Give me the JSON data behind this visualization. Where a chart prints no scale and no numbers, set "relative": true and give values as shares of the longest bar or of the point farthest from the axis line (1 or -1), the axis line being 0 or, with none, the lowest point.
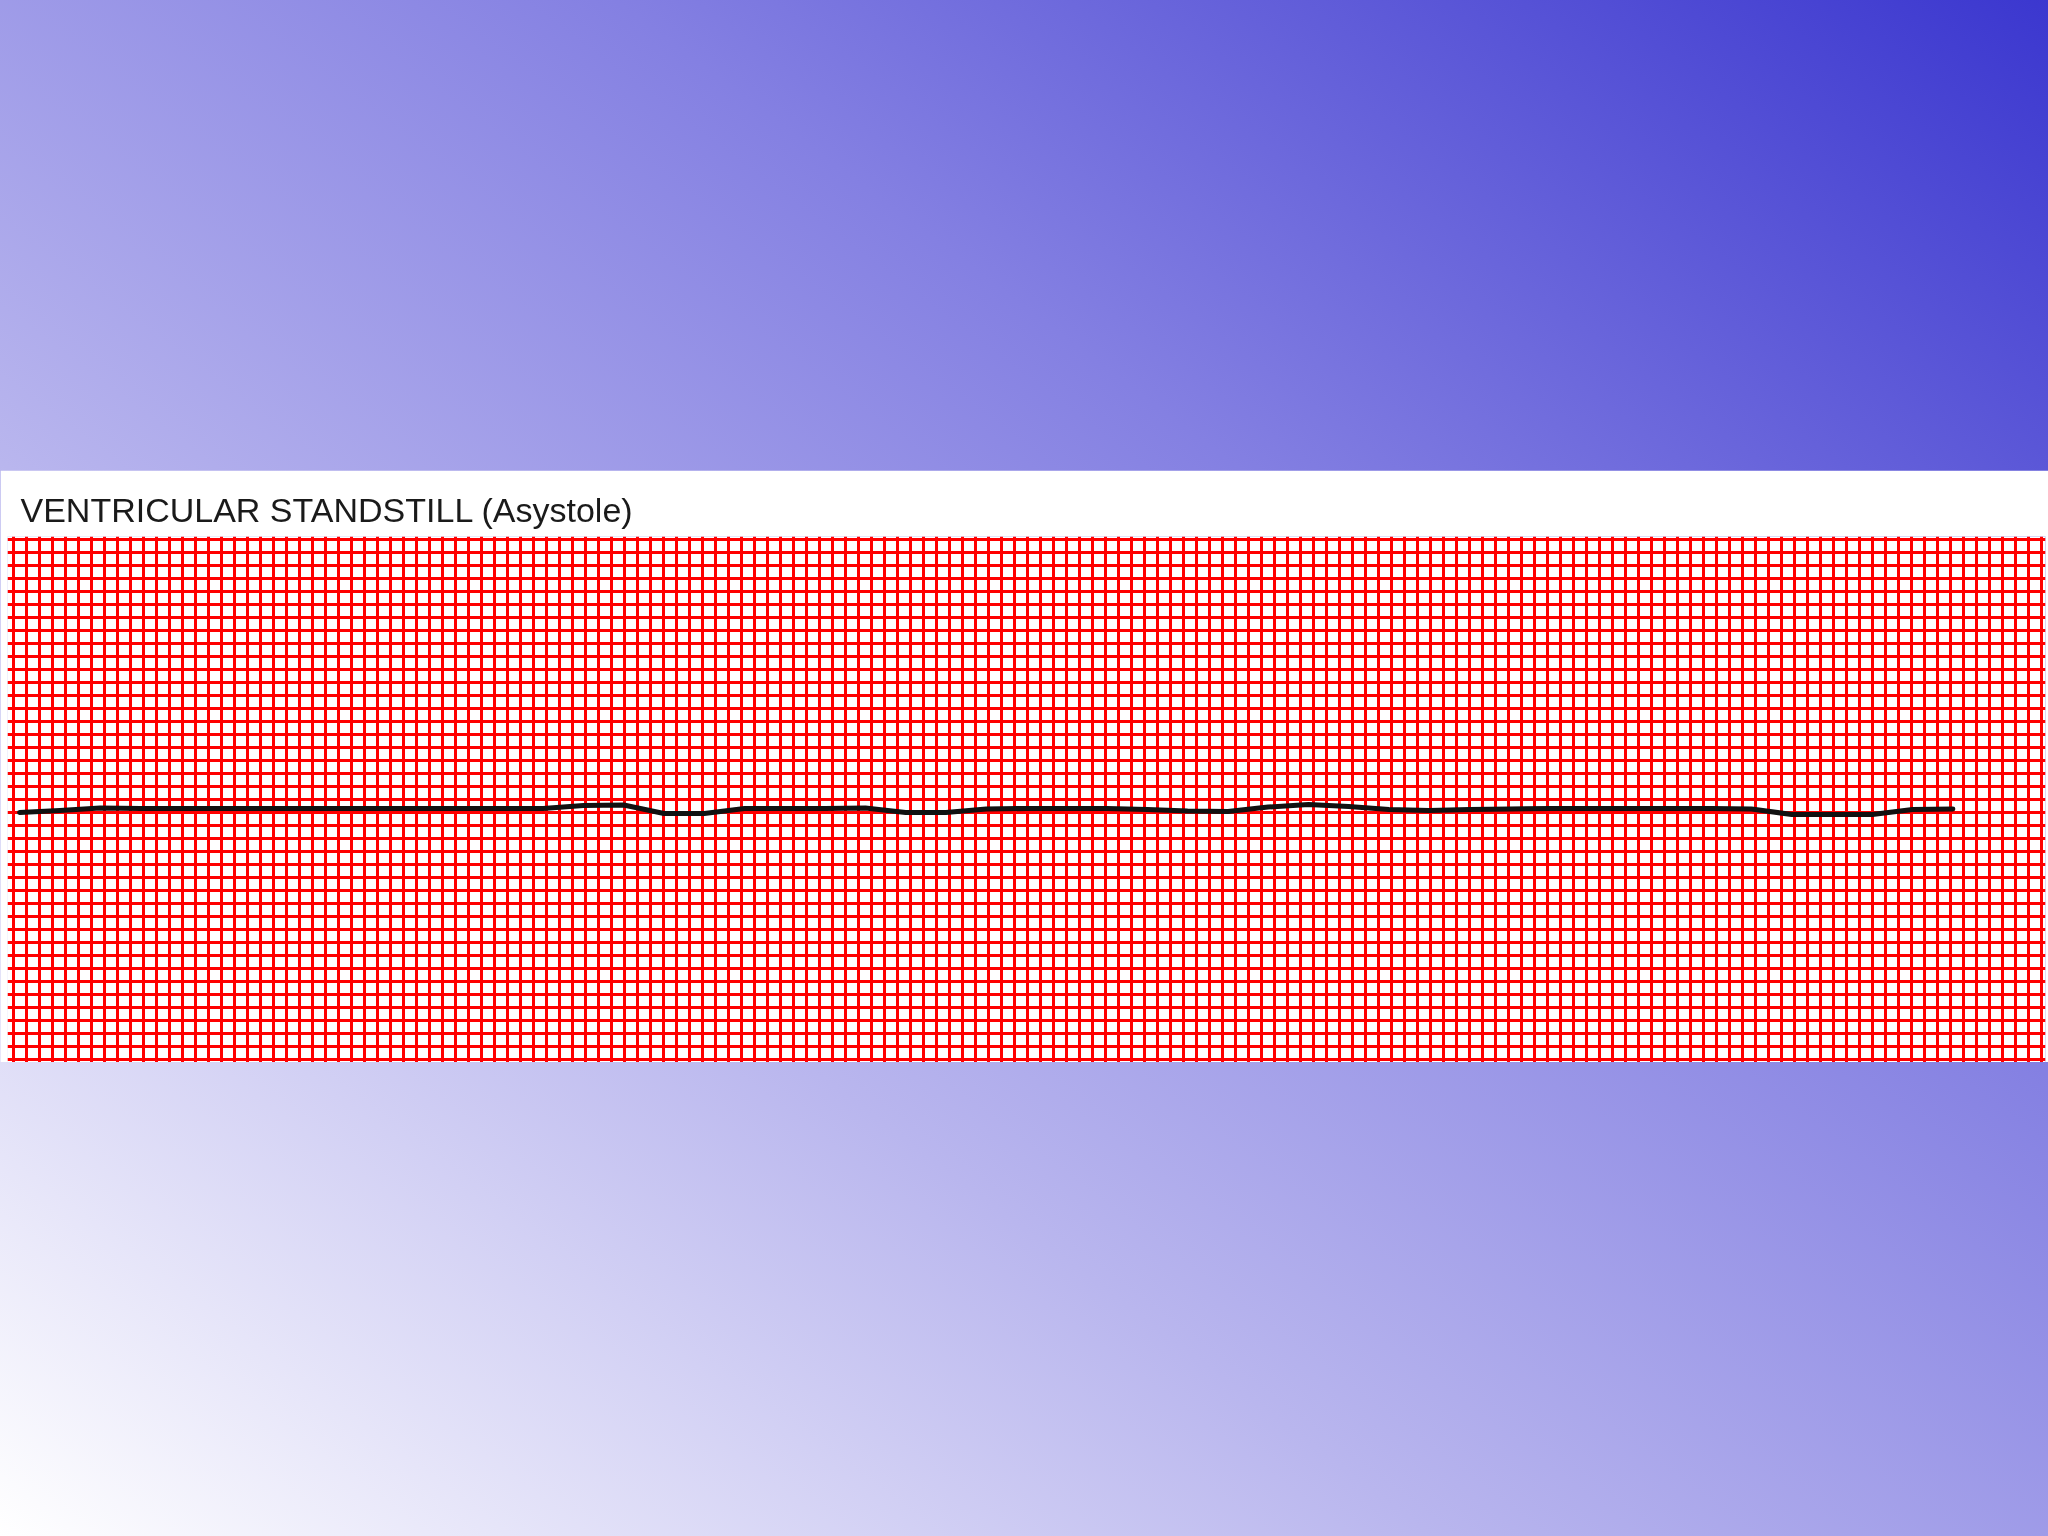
{
  "chart_data": {
    "type": "line",
    "title": "VENTRICULAR STANDSTILL  (Asystole)",
    "categories": [
      null,
      null,
      null,
      null,
      null,
      null,
      null,
      null,
      null,
      null,
      null,
      null,
      null,
      null,
      null,
      null,
      null,
      null,
      null,
      null,
      null,
      null,
      null,
      null,
      null,
      null,
      null,
      null,
      null,
      null,
      null,
      null,
      null,
      null,
      null,
      null,
      null,
      null,
      null,
      null,
      null,
      null,
      null,
      null,
      null,
      null,
      null,
      null,
      null,
      null,
      null
    ],
    "relative": true,
    "series": [
      {
        "color": "#111111",
        "values": [
          0.2,
          0.4,
          0.65,
          0.6,
          0.6,
          0.6,
          0.6,
          0.6,
          0.6,
          0.6,
          0.6,
          0.6,
          0.6,
          0.6,
          0.9,
          0.95,
          0.1,
          0.1,
          0.6,
          0.6,
          0.6,
          0.65,
          0.2,
          0.2,
          0.55,
          0.6,
          0.6,
          0.6,
          0.5,
          0.35,
          0.3,
          0.75,
          1.0,
          0.8,
          0.5,
          0.4,
          0.5,
          0.55,
          0.6,
          0.6,
          0.6,
          0.6,
          0.6,
          0.55,
          0,
          0,
          0,
          0.5,
          0.55,
          null,
          null
        ]
      }
    ],
    "grid": true,
    "tick_labels": false
  }
}
